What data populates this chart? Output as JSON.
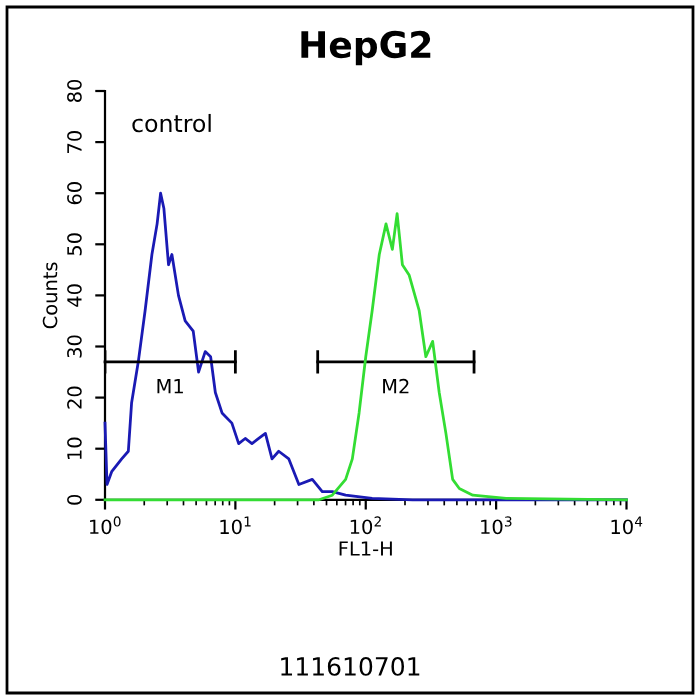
{
  "chart_data": {
    "type": "line",
    "title": "HepG2",
    "xlabel": "FL1-H",
    "ylabel": "Counts",
    "log": "x",
    "xlim": [
      1,
      10000
    ],
    "xticks": [
      {
        "value": 1,
        "label": "10$^{0}$"
      },
      {
        "value": 10,
        "label": "10$^{1}$"
      },
      {
        "value": 100,
        "label": "10$^{2}$"
      },
      {
        "value": 1000,
        "label": "10$^{3}$"
      },
      {
        "value": 10000,
        "label": "10$^{4}$"
      }
    ],
    "ylim": [
      0,
      80
    ],
    "yticks": [
      0,
      10,
      20,
      30,
      40,
      50,
      60,
      70,
      80
    ],
    "grid": false,
    "legend": false,
    "series": [
      {
        "color": "#1a1ab4",
        "x": [
          1.0,
          1.036,
          1.125,
          1.343,
          1.51,
          1.6,
          1.8,
          2.03,
          2.29,
          2.51,
          2.67,
          2.83,
          3.07,
          3.26,
          3.66,
          4.12,
          4.75,
          5.22,
          5.87,
          6.46,
          7.02,
          7.9,
          9.4,
          10.6,
          11.9,
          13.4,
          15.1,
          17.0,
          19.1,
          21.5,
          25.7,
          30.7,
          38.9,
          46.4,
          55.4,
          70.1,
          112,
          229,
          10000
        ],
        "values": [
          15,
          3,
          5.5,
          8,
          9.5,
          19,
          27,
          37,
          48,
          54,
          60,
          57,
          46,
          48,
          40,
          35,
          33,
          25,
          29,
          28,
          21,
          17,
          15,
          11,
          12,
          11,
          12,
          13,
          8,
          9.5,
          8,
          3,
          4,
          1.6,
          1.6,
          0.9,
          0.3,
          0,
          0
        ]
      },
      {
        "color": "#000000",
        "x": [
          1,
          10
        ],
        "values": [
          27,
          27
        ]
      },
      {
        "color": "#000000",
        "x": [
          42.8,
          677
        ],
        "values": [
          27,
          27
        ]
      },
      {
        "color": "#33dd33",
        "x": [
          1.0,
          43.8,
          55.4,
          70.1,
          78.9,
          88.9,
          100,
          112,
          127,
          143,
          160,
          174,
          191,
          215,
          257,
          289,
          326,
          366,
          412,
          464,
          522,
          662,
          1194,
          10000
        ],
        "values": [
          0,
          0,
          0.9,
          4,
          8,
          17,
          28,
          37,
          48,
          54,
          49,
          56,
          46,
          44,
          37,
          28,
          31,
          21,
          13,
          4,
          2.2,
          0.9,
          0.3,
          0
        ]
      }
    ],
    "annotations": [
      "control",
      "111610701",
      {
        "text": "M1",
        "x": 3.16,
        "y": 27
      },
      {
        "text": "M2",
        "x": 170,
        "y": 27
      }
    ]
  }
}
